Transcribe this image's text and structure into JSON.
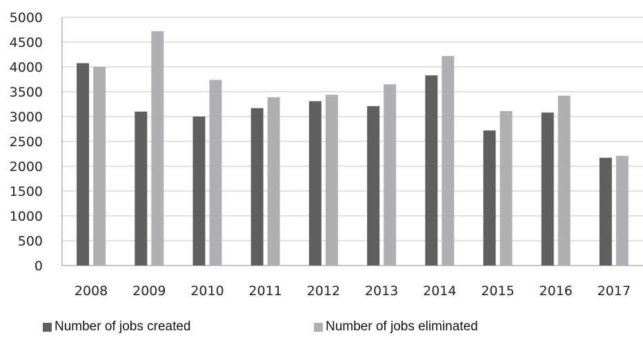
{
  "chart_data": {
    "type": "bar",
    "categories": [
      "2008",
      "2009",
      "2010",
      "2011",
      "2012",
      "2013",
      "2014",
      "2015",
      "2016",
      "2017"
    ],
    "series": [
      {
        "name": "Number of jobs created",
        "color": "#5f5f5f",
        "values": [
          4075,
          3100,
          3000,
          3170,
          3310,
          3210,
          3830,
          2720,
          3080,
          2170
        ]
      },
      {
        "name": "Number of jobs eliminated",
        "color": "#b0b0b2",
        "values": [
          4000,
          4720,
          3740,
          3390,
          3440,
          3650,
          4220,
          3110,
          3420,
          2210
        ]
      }
    ],
    "yticks": [
      "0",
      "500",
      "1000",
      "1500",
      "2000",
      "2500",
      "3000",
      "3500",
      "4000",
      "4500",
      "5000"
    ],
    "ylim": [
      0,
      5000
    ],
    "grid": true,
    "legend": "bottom"
  }
}
